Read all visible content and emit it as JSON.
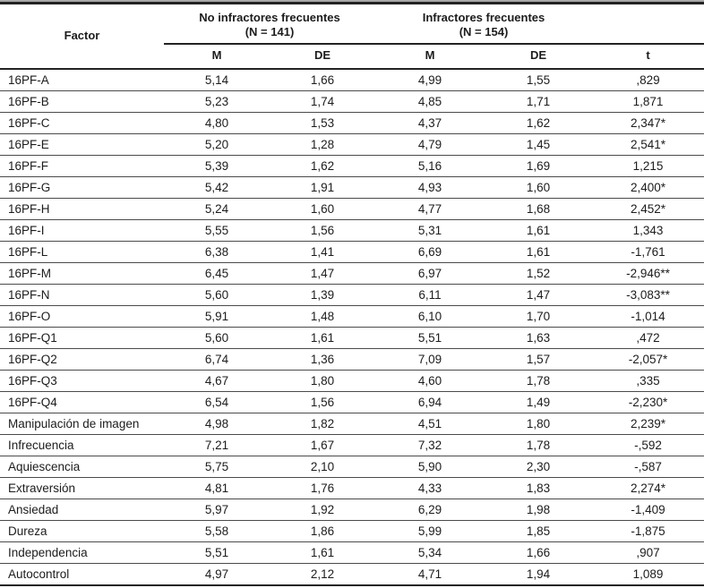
{
  "table": {
    "factor_header": "Factor",
    "group1": {
      "line1": "No infractores frecuentes",
      "line2": "(N = 141)"
    },
    "group2": {
      "line1": "Infractores frecuentes",
      "line2": "(N = 154)"
    },
    "subheaders": {
      "m1": "M",
      "de1": "DE",
      "m2": "M",
      "de2": "DE",
      "t": "t"
    },
    "rows": [
      {
        "factor": "16PF-A",
        "m1": "5,14",
        "de1": "1,66",
        "m2": "4,99",
        "de2": "1,55",
        "t": ",829"
      },
      {
        "factor": "16PF-B",
        "m1": "5,23",
        "de1": "1,74",
        "m2": "4,85",
        "de2": "1,71",
        "t": "1,871"
      },
      {
        "factor": "16PF-C",
        "m1": "4,80",
        "de1": "1,53",
        "m2": "4,37",
        "de2": "1,62",
        "t": "2,347*"
      },
      {
        "factor": "16PF-E",
        "m1": "5,20",
        "de1": "1,28",
        "m2": "4,79",
        "de2": "1,45",
        "t": "2,541*"
      },
      {
        "factor": "16PF-F",
        "m1": "5,39",
        "de1": "1,62",
        "m2": "5,16",
        "de2": "1,69",
        "t": "1,215"
      },
      {
        "factor": "16PF-G",
        "m1": "5,42",
        "de1": "1,91",
        "m2": "4,93",
        "de2": "1,60",
        "t": "2,400*"
      },
      {
        "factor": "16PF-H",
        "m1": "5,24",
        "de1": "1,60",
        "m2": "4,77",
        "de2": "1,68",
        "t": "2,452*"
      },
      {
        "factor": "16PF-I",
        "m1": "5,55",
        "de1": "1,56",
        "m2": "5,31",
        "de2": "1,61",
        "t": "1,343"
      },
      {
        "factor": "16PF-L",
        "m1": "6,38",
        "de1": "1,41",
        "m2": "6,69",
        "de2": "1,61",
        "t": "-1,761"
      },
      {
        "factor": "16PF-M",
        "m1": "6,45",
        "de1": "1,47",
        "m2": "6,97",
        "de2": "1,52",
        "t": "-2,946**"
      },
      {
        "factor": "16PF-N",
        "m1": "5,60",
        "de1": "1,39",
        "m2": "6,11",
        "de2": "1,47",
        "t": "-3,083**"
      },
      {
        "factor": "16PF-O",
        "m1": "5,91",
        "de1": "1,48",
        "m2": "6,10",
        "de2": "1,70",
        "t": "-1,014"
      },
      {
        "factor": "16PF-Q1",
        "m1": "5,60",
        "de1": "1,61",
        "m2": "5,51",
        "de2": "1,63",
        "t": ",472"
      },
      {
        "factor": "16PF-Q2",
        "m1": "6,74",
        "de1": "1,36",
        "m2": "7,09",
        "de2": "1,57",
        "t": "-2,057*"
      },
      {
        "factor": "16PF-Q3",
        "m1": "4,67",
        "de1": "1,80",
        "m2": "4,60",
        "de2": "1,78",
        "t": ",335"
      },
      {
        "factor": "16PF-Q4",
        "m1": "6,54",
        "de1": "1,56",
        "m2": "6,94",
        "de2": "1,49",
        "t": "-2,230*"
      },
      {
        "factor": "Manipulación de imagen",
        "m1": "4,98",
        "de1": "1,82",
        "m2": "4,51",
        "de2": "1,80",
        "t": "2,239*"
      },
      {
        "factor": "Infrecuencia",
        "m1": "7,21",
        "de1": "1,67",
        "m2": "7,32",
        "de2": "1,78",
        "t": "-,592"
      },
      {
        "factor": "Aquiescencia",
        "m1": "5,75",
        "de1": "2,10",
        "m2": "5,90",
        "de2": "2,30",
        "t": "-,587"
      },
      {
        "factor": "Extraversión",
        "m1": "4,81",
        "de1": "1,76",
        "m2": "4,33",
        "de2": "1,83",
        "t": "2,274*"
      },
      {
        "factor": "Ansiedad",
        "m1": "5,97",
        "de1": "1,92",
        "m2": "6,29",
        "de2": "1,98",
        "t": "-1,409"
      },
      {
        "factor": "Dureza",
        "m1": "5,58",
        "de1": "1,86",
        "m2": "5,99",
        "de2": "1,85",
        "t": "-1,875"
      },
      {
        "factor": "Independencia",
        "m1": "5,51",
        "de1": "1,61",
        "m2": "5,34",
        "de2": "1,66",
        "t": ",907"
      },
      {
        "factor": "Autocontrol",
        "m1": "4,97",
        "de1": "2,12",
        "m2": "4,71",
        "de2": "1,94",
        "t": "1,089"
      }
    ]
  },
  "colors": {
    "text": "#1c1c1c",
    "heavy_rule": "#232323",
    "row_rule": "#4a4a4a",
    "top_strip": "#a8a8a8"
  }
}
